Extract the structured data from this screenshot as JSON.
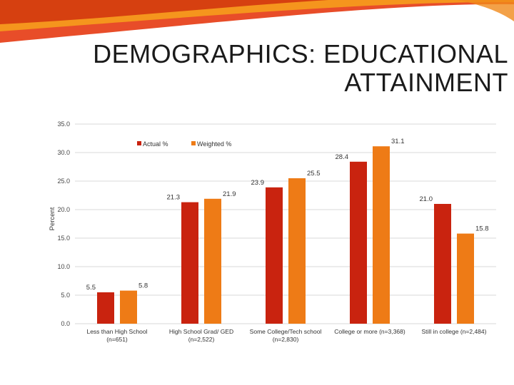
{
  "slide": {
    "title_line1": "DEMOGRAPHICS:  EDUCATIONAL",
    "title_line2": "ATTAINMENT"
  },
  "colors": {
    "actual": "#c9230f",
    "weighted": "#ee7b16",
    "grid": "#d9d9d9",
    "swoosh_red": "#e53a12",
    "swoosh_orange": "#f7a21b"
  },
  "chart_data": {
    "type": "bar",
    "ylabel": "Percent",
    "ylim": [
      0,
      35
    ],
    "yticks": [
      "0.0",
      "5.0",
      "10.0",
      "15.0",
      "20.0",
      "25.0",
      "30.0",
      "35.0"
    ],
    "grid": true,
    "legend_position": "top",
    "categories": [
      [
        "Less than High School",
        "(n=651)"
      ],
      [
        "High School Grad/ GED",
        "(n=2,522)"
      ],
      [
        "Some College/Tech school",
        "(n=2,830)"
      ],
      [
        "College or more (n=3,368)"
      ],
      [
        "Still in college (n=2,484)"
      ]
    ],
    "series": [
      {
        "name": "Actual %",
        "values": [
          5.5,
          21.3,
          23.9,
          28.4,
          21.0
        ],
        "labels": [
          "5.5",
          "21.3",
          "23.9",
          "28.4",
          "21.0"
        ]
      },
      {
        "name": "Weighted %",
        "values": [
          5.8,
          21.9,
          25.5,
          31.1,
          15.8
        ],
        "labels": [
          "5.8",
          "21.9",
          "25.5",
          "31.1",
          "15.8"
        ]
      }
    ]
  }
}
